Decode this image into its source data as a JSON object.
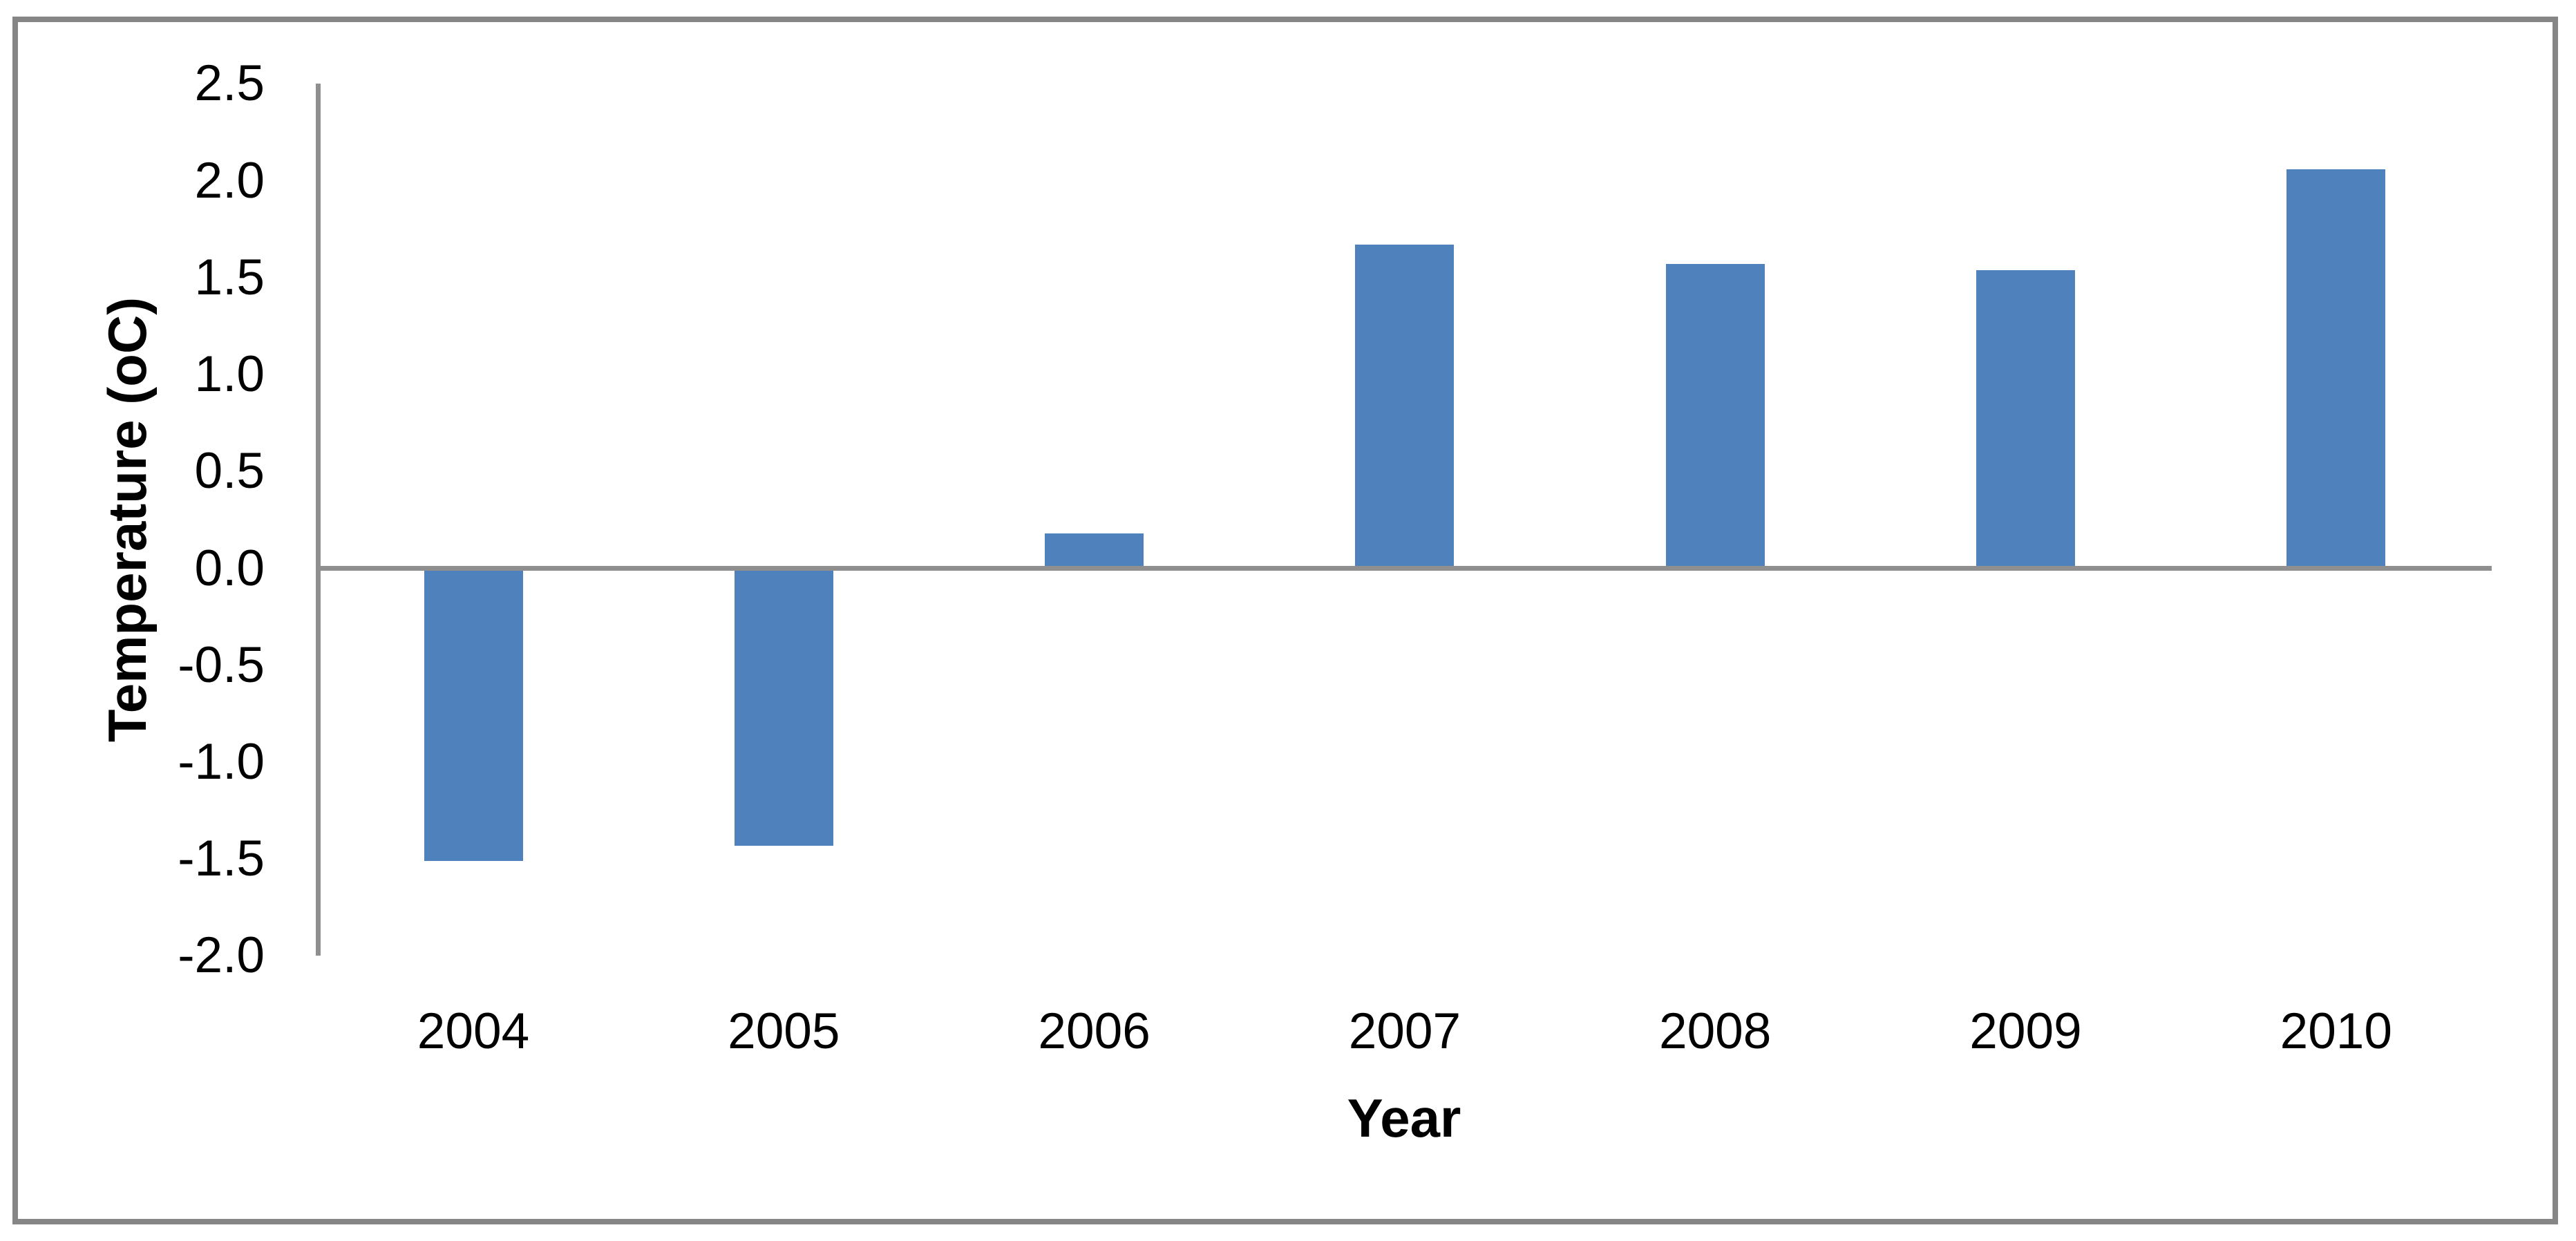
{
  "figure": {
    "background": "#ffffff",
    "border_color": "#868686",
    "axis_color": "#8f8f8f",
    "bar_color": "#4f81bd",
    "text_color": "#000000"
  },
  "chart_data": {
    "type": "bar",
    "title": "",
    "xlabel": "Year",
    "ylabel": "Temperature (oC)",
    "categories": [
      "2004",
      "2005",
      "2006",
      "2007",
      "2008",
      "2009",
      "2010"
    ],
    "values": [
      -1.51,
      -1.43,
      0.18,
      1.67,
      1.57,
      1.54,
      2.06
    ],
    "ylim": [
      -2.0,
      2.5
    ],
    "ytick_step": 0.5,
    "ytick_labels": [
      "2.5",
      "2.0",
      "1.5",
      "1.0",
      "0.5",
      "0.0",
      "-0.5",
      "-1.0",
      "-1.5",
      "-2.0"
    ],
    "grid": false,
    "legend": "none",
    "bar_color": "#4f81bd"
  }
}
